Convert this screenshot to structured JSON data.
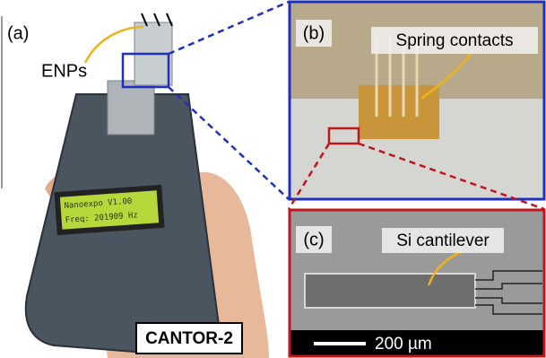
{
  "panels": [
    {
      "label": "(a)",
      "annotation": "ENPs",
      "caption": "CANTOR-2",
      "display": [
        "Nanoexpo V1.00",
        "Freq: 201909 Hz"
      ]
    },
    {
      "label": "(b)",
      "annotation": "Spring contacts"
    },
    {
      "label": "(c)",
      "annotation": "Si cantilever",
      "scale_bar": "200 µm"
    }
  ]
}
